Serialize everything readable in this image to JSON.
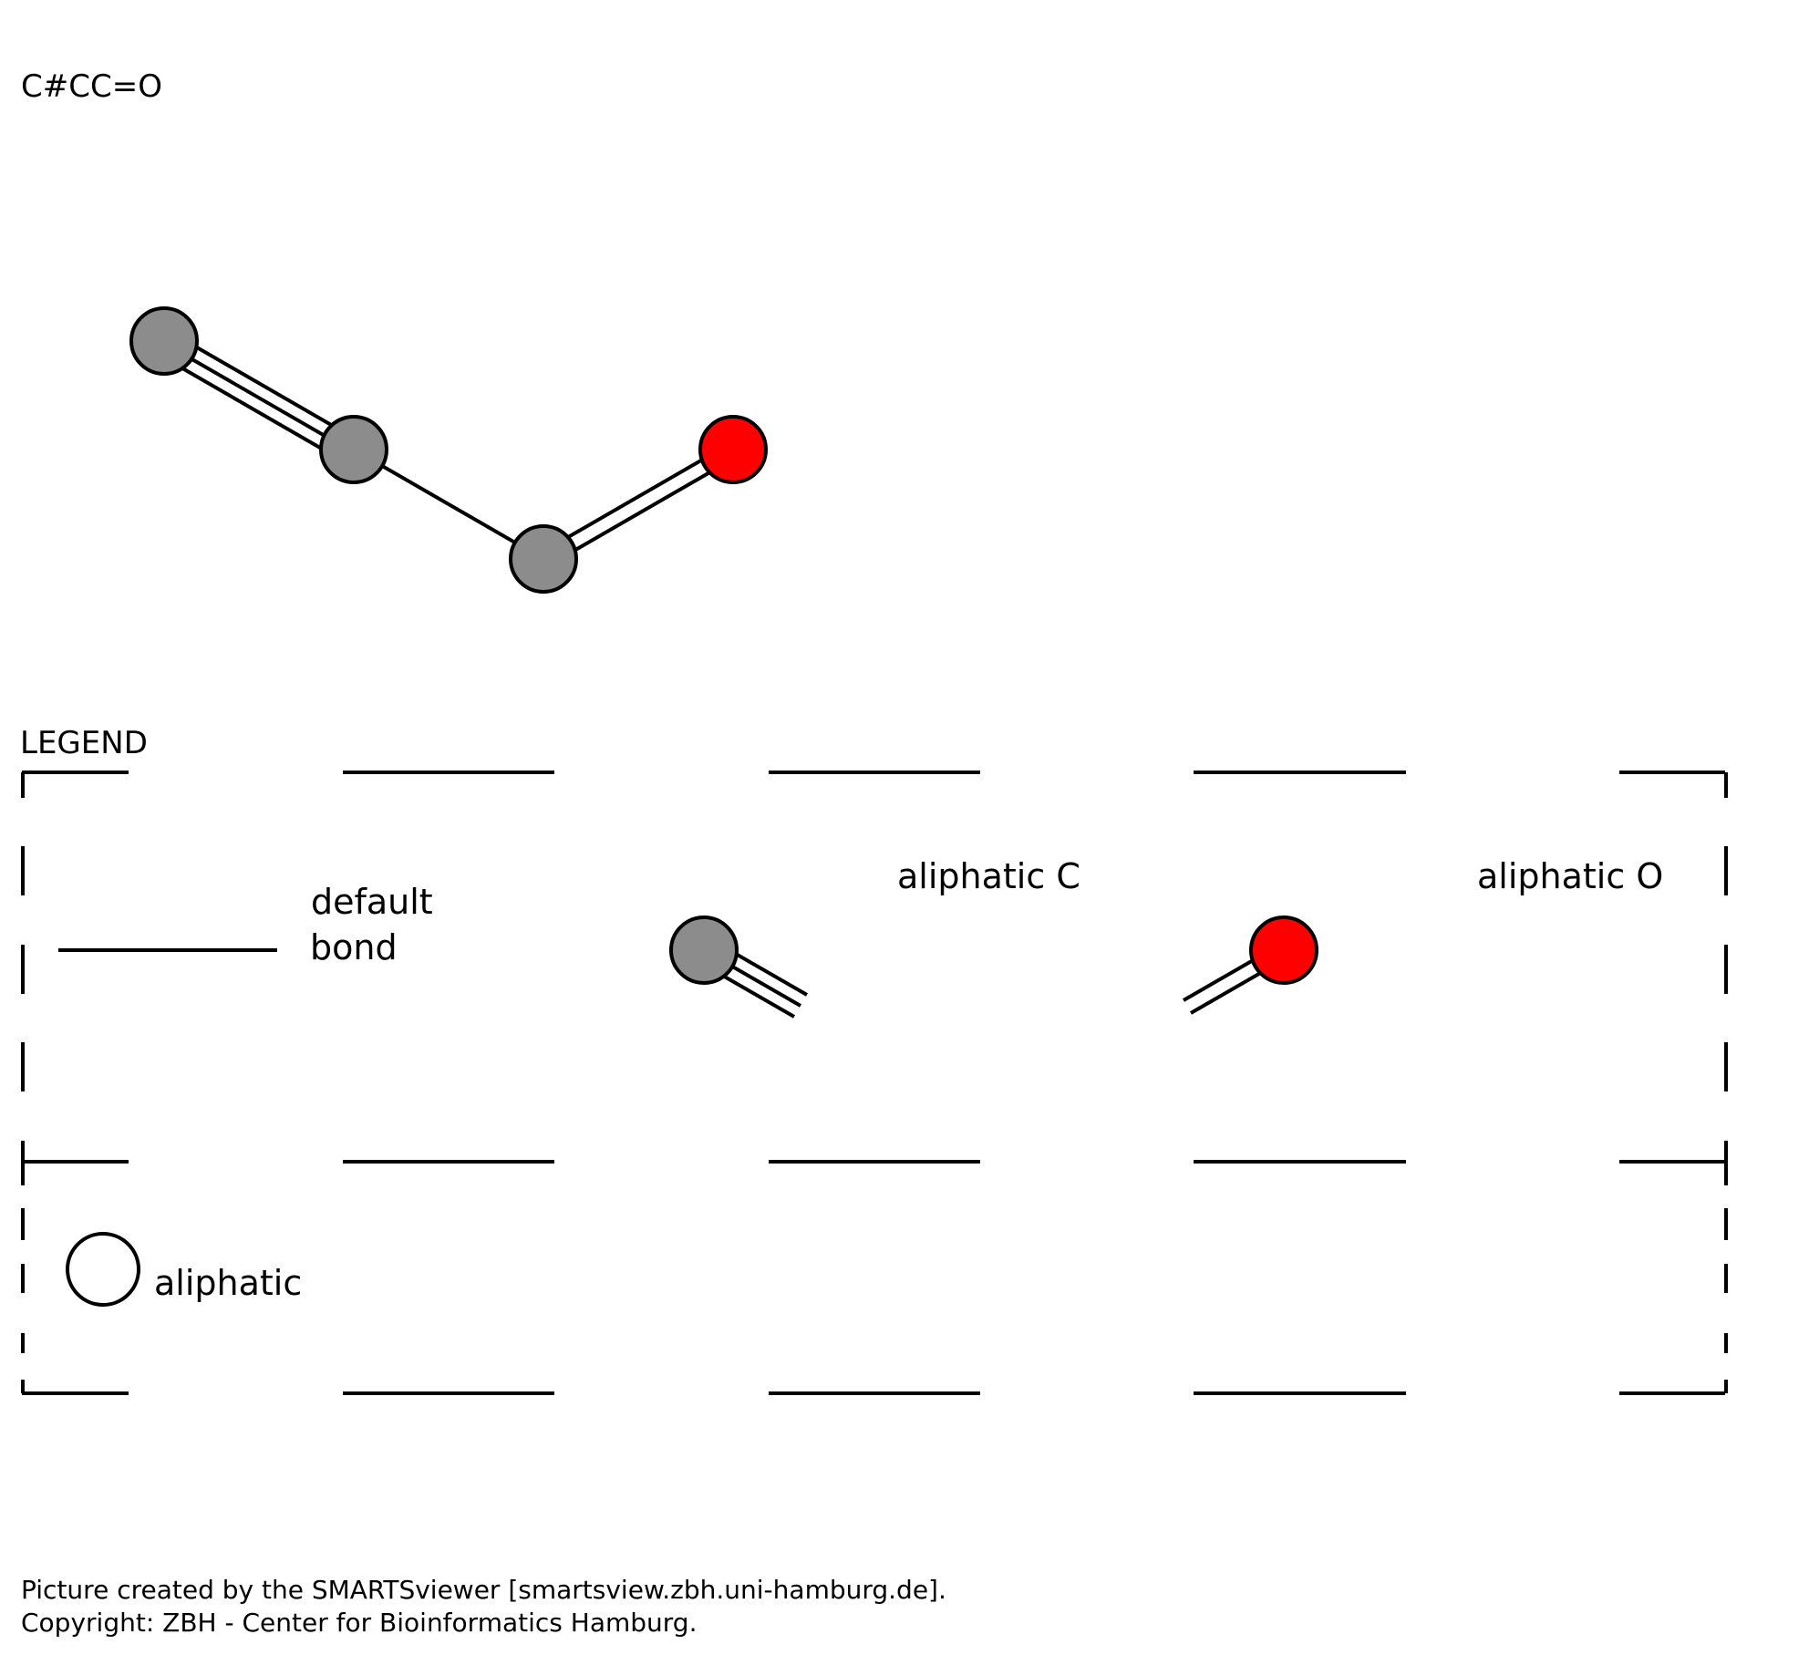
{
  "smarts": "C#CC=O",
  "molecule": {
    "atoms": [
      {
        "id": "atom-c1",
        "element": "C",
        "type": "aliphatic C"
      },
      {
        "id": "atom-c2",
        "element": "C",
        "type": "aliphatic C"
      },
      {
        "id": "atom-c3",
        "element": "C",
        "type": "aliphatic C"
      },
      {
        "id": "atom-o1",
        "element": "O",
        "type": "aliphatic O"
      }
    ],
    "bonds": [
      {
        "from": "atom-c1",
        "to": "atom-c2",
        "order": 3
      },
      {
        "from": "atom-c2",
        "to": "atom-c3",
        "order": 1
      },
      {
        "from": "atom-c3",
        "to": "atom-o1",
        "order": 2
      }
    ]
  },
  "legend": {
    "title": "LEGEND",
    "default_bond": [
      "default",
      "bond"
    ],
    "aliphatic_c": "aliphatic C",
    "aliphatic_o": "aliphatic O",
    "aliphatic": "aliphatic"
  },
  "colors": {
    "carbon": "#8c8c8c",
    "oxygen": "#ff0000",
    "outline": "#000000",
    "background": "#ffffff"
  },
  "footer": {
    "line1": "Picture created by the SMARTSviewer [smartsview.zbh.uni-hamburg.de].",
    "line2": "Copyright: ZBH - Center for Bioinformatics Hamburg."
  }
}
